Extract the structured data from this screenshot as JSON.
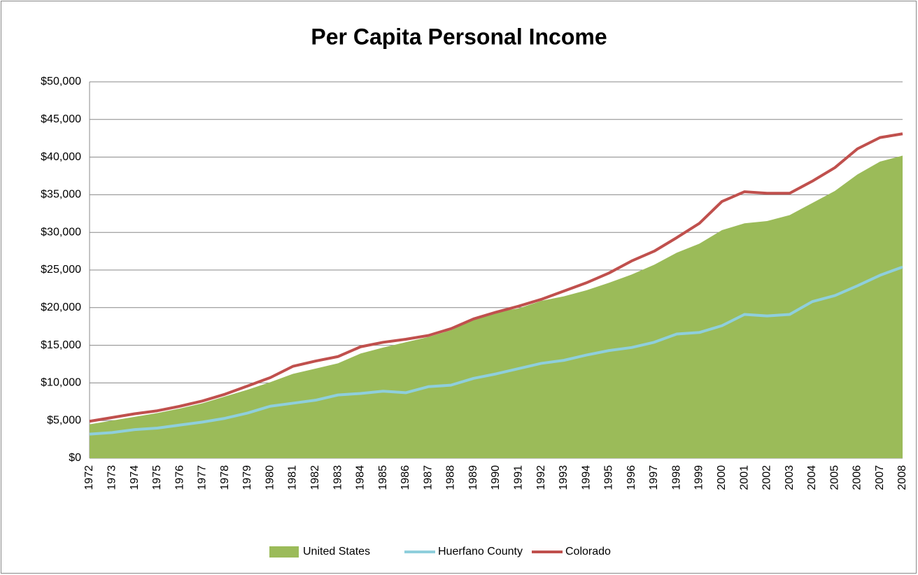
{
  "chart_data": {
    "type": "area_line",
    "title": "Per Capita Personal Income",
    "categories": [
      "1972",
      "1973",
      "1974",
      "1975",
      "1976",
      "1977",
      "1978",
      "1979",
      "1980",
      "1981",
      "1982",
      "1983",
      "1984",
      "1985",
      "1986",
      "1987",
      "1988",
      "1989",
      "1990",
      "1991",
      "1992",
      "1993",
      "1994",
      "1995",
      "1996",
      "1997",
      "1998",
      "1999",
      "2000",
      "2001",
      "2002",
      "2003",
      "2004",
      "2005",
      "2006",
      "2007",
      "2008"
    ],
    "series": [
      {
        "name": "United States",
        "kind": "area",
        "color": "#9bbb59",
        "values": [
          4500,
          5000,
          5500,
          6000,
          6600,
          7300,
          8200,
          9100,
          10100,
          11200,
          11900,
          12600,
          13900,
          14700,
          15400,
          16100,
          17000,
          18400,
          19400,
          19900,
          20900,
          21500,
          22300,
          23300,
          24400,
          25700,
          27300,
          28500,
          30300,
          31200,
          31500,
          32300,
          33900,
          35500,
          37700,
          39400,
          40200
        ]
      },
      {
        "name": "Huerfano County",
        "kind": "line",
        "color": "#8fcfdc",
        "values": [
          3200,
          3400,
          3800,
          4000,
          4400,
          4800,
          5300,
          6000,
          6900,
          7300,
          7700,
          8400,
          8600,
          8900,
          8700,
          9500,
          9700,
          10600,
          11200,
          11900,
          12600,
          13000,
          13700,
          14300,
          14700,
          15400,
          16500,
          16700,
          17600,
          19100,
          18900,
          19100,
          20800,
          21600,
          22900,
          24300,
          25400
        ]
      },
      {
        "name": "Colorado",
        "kind": "line",
        "color": "#c0504d",
        "values": [
          4900,
          5400,
          5900,
          6300,
          6900,
          7600,
          8500,
          9600,
          10700,
          12200,
          12900,
          13500,
          14800,
          15400,
          15800,
          16300,
          17200,
          18500,
          19400,
          20200,
          21100,
          22200,
          23300,
          24600,
          26200,
          27500,
          29300,
          31200,
          34100,
          35400,
          35200,
          35200,
          36800,
          38600,
          41100,
          42600,
          43100
        ]
      }
    ],
    "ylim": [
      0,
      50000
    ],
    "yticks": [
      {
        "value": 0,
        "label": "$0"
      },
      {
        "value": 5000,
        "label": "$5,000"
      },
      {
        "value": 10000,
        "label": "$10,000"
      },
      {
        "value": 15000,
        "label": "$15,000"
      },
      {
        "value": 20000,
        "label": "$20,000"
      },
      {
        "value": 25000,
        "label": "$25,000"
      },
      {
        "value": 30000,
        "label": "$30,000"
      },
      {
        "value": 35000,
        "label": "$35,000"
      },
      {
        "value": 40000,
        "label": "$40,000"
      },
      {
        "value": 45000,
        "label": "$45,000"
      },
      {
        "value": 50000,
        "label": "$50,000"
      }
    ],
    "grid": true,
    "legend": "bottom"
  }
}
